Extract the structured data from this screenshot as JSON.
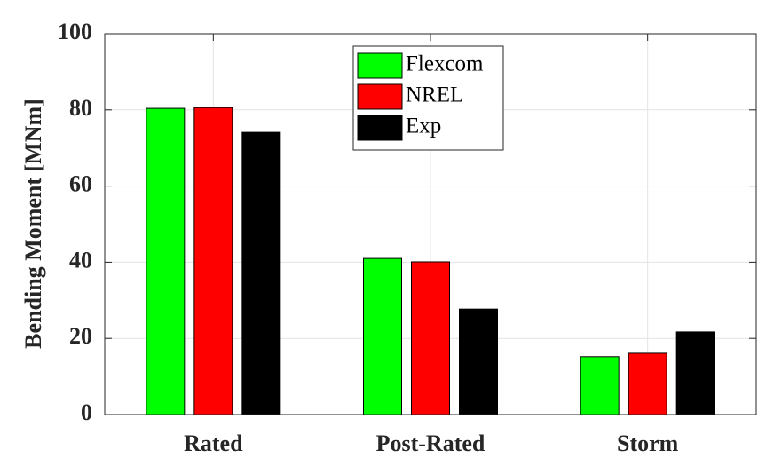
{
  "chart_data": {
    "type": "bar",
    "ylabel": "Bending Moment [MNm]",
    "categories": [
      "Rated",
      "Post-Rated",
      "Storm"
    ],
    "series": [
      {
        "name": "Flexcom",
        "color": "#00ff00",
        "values": [
          80.4,
          41.0,
          15.2
        ]
      },
      {
        "name": "NREL",
        "color": "#ff0000",
        "values": [
          80.6,
          40.1,
          16.1
        ]
      },
      {
        "name": "Exp",
        "color": "#000000",
        "values": [
          74.1,
          27.7,
          21.7
        ]
      }
    ],
    "ylim": [
      0,
      100
    ],
    "yticks": [
      0,
      20,
      40,
      60,
      80,
      100
    ],
    "grid": true,
    "legend": "top-center"
  }
}
